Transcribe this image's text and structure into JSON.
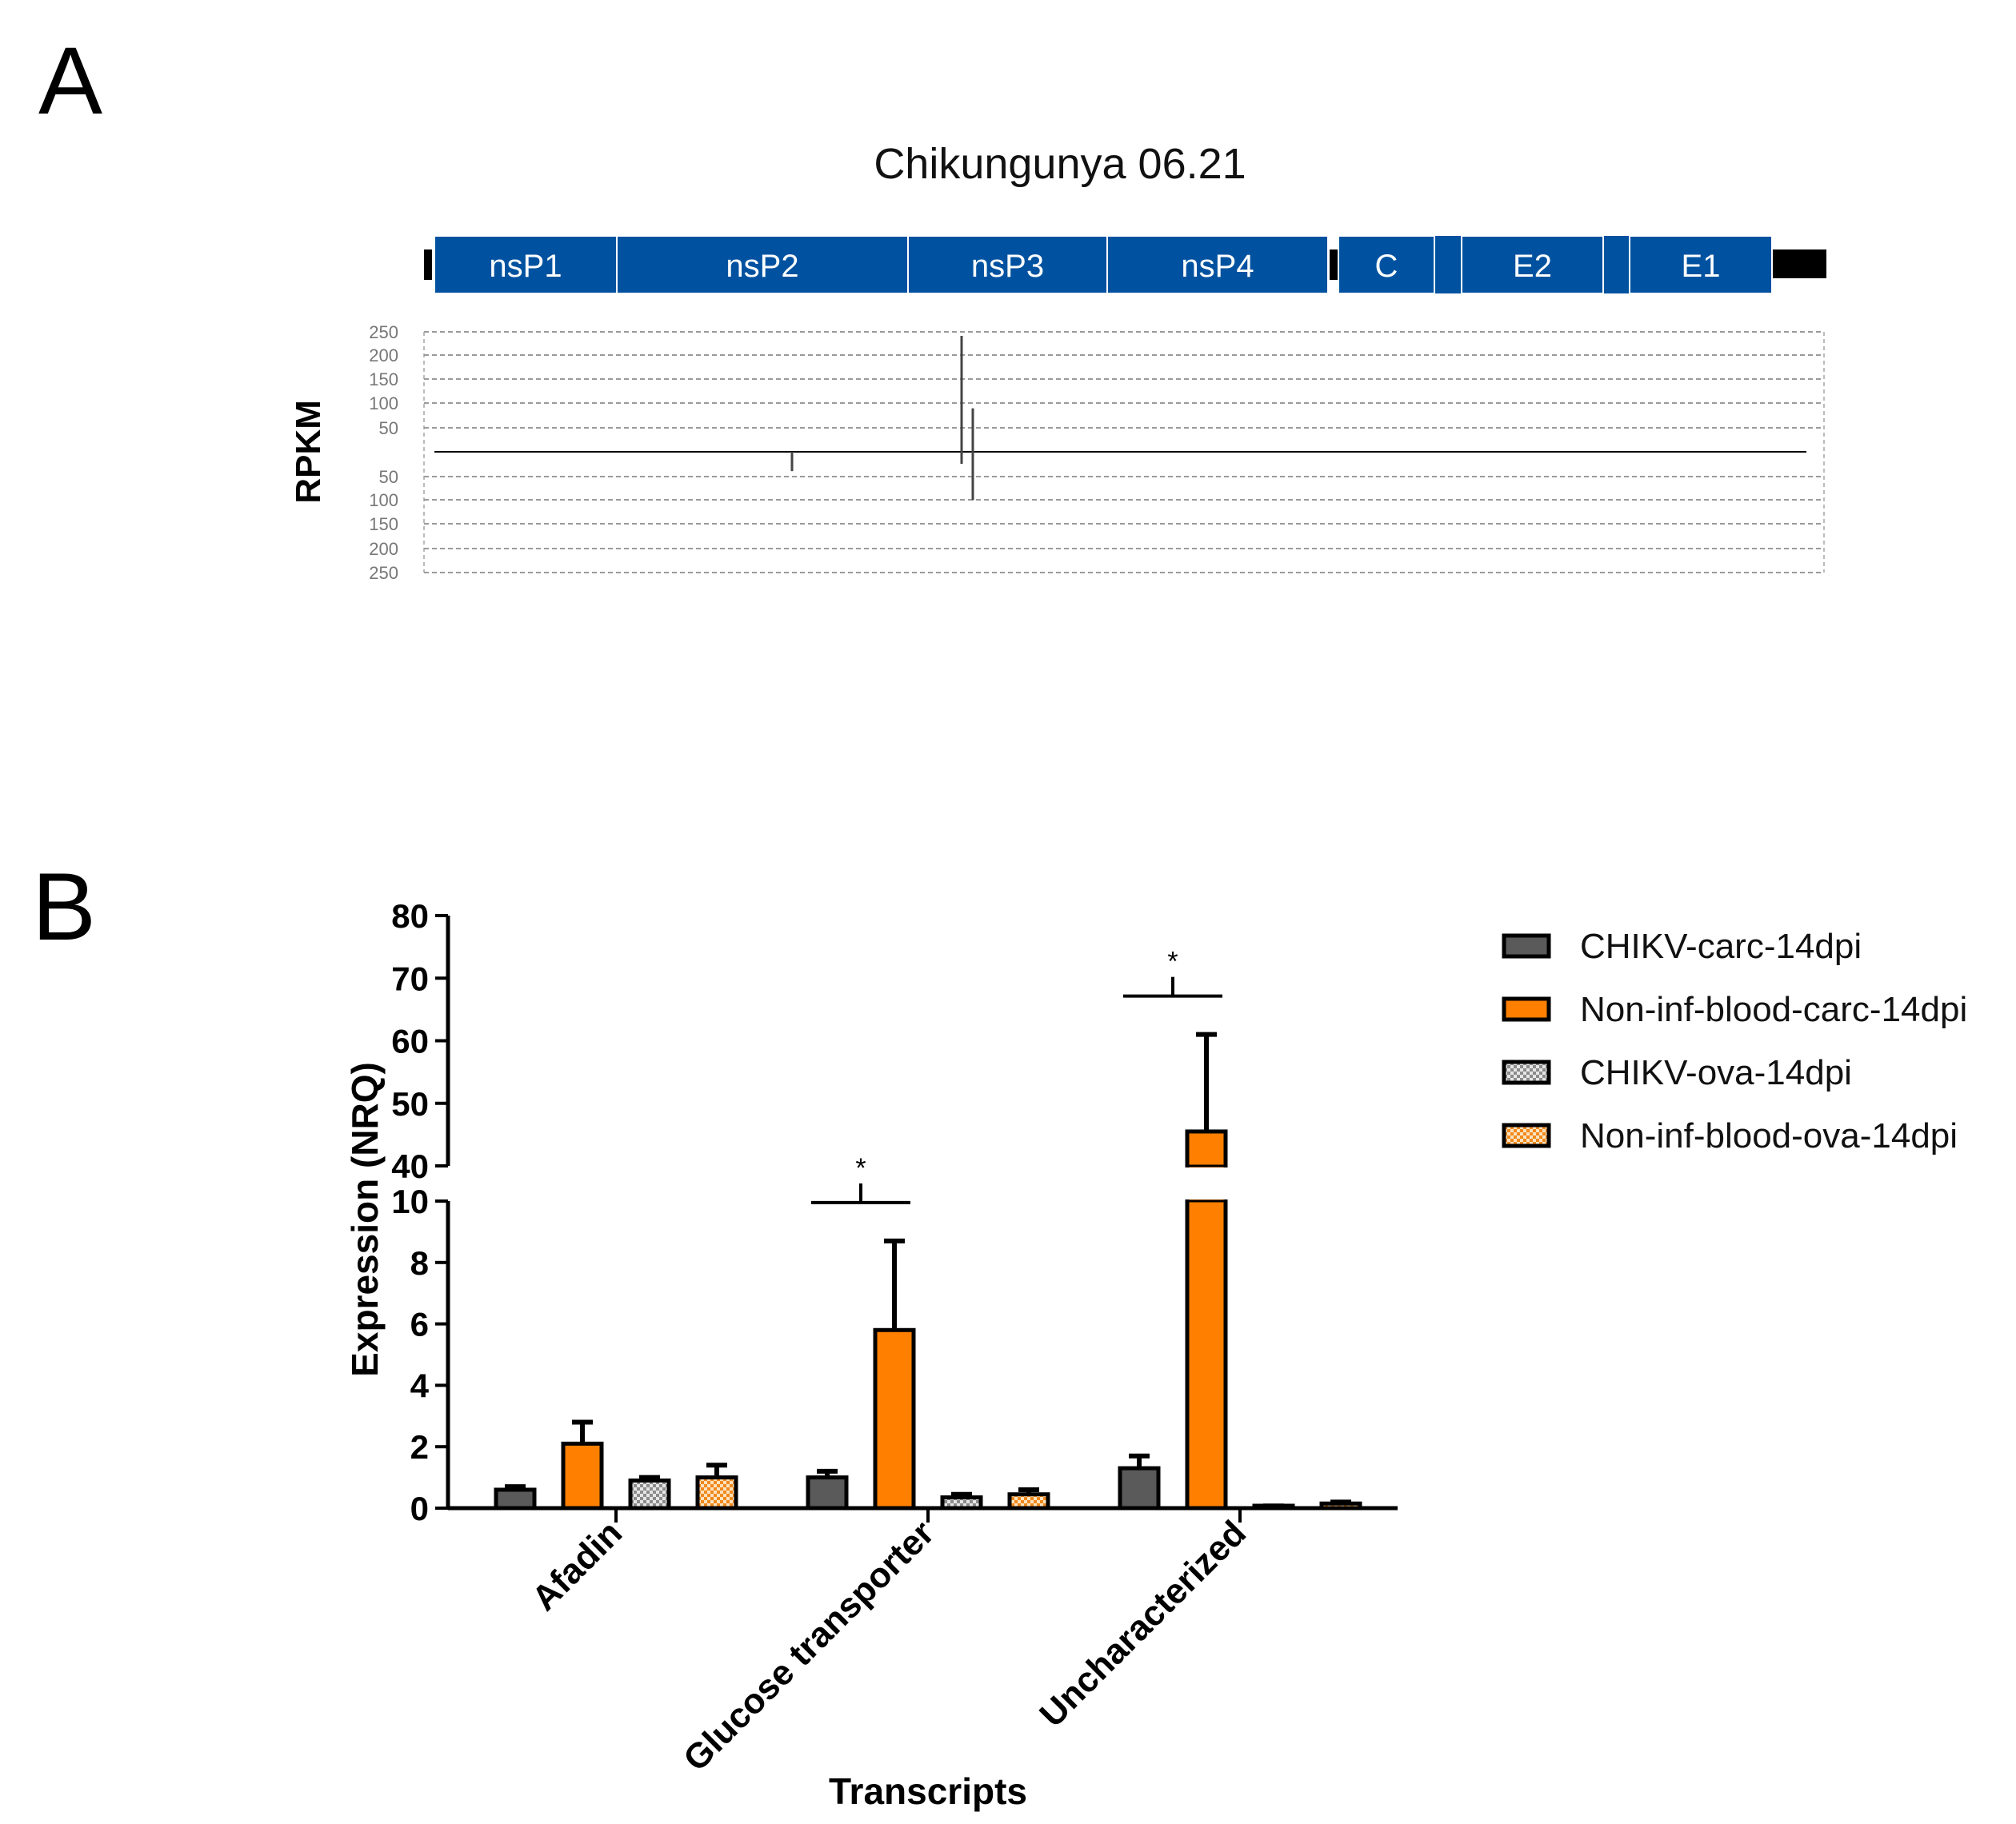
{
  "panel_a": {
    "letter": "A",
    "title": "Chikungunya 06.21",
    "ylabel": "RPKM",
    "genes": [
      "nsP1",
      "nsP2",
      "nsP3",
      "nsP4",
      "C",
      "E2",
      "E1"
    ],
    "ticks_top": [
      "250",
      "200",
      "150",
      "100",
      "50"
    ],
    "ticks_bottom": [
      "50",
      "100",
      "150",
      "200",
      "250"
    ]
  },
  "panel_b": {
    "letter": "B",
    "xlabel": "Transcripts",
    "ylabel": "Expression (NRQ)",
    "significance": "*"
  },
  "colors": {
    "gene_blue": "#0052a0",
    "dark_gray": "#5a5a5a",
    "orange": "#ff7f00",
    "pattern_gray": "#b5b5b5",
    "pattern_orange": "#f4a94e"
  },
  "chart_data": [
    {
      "type": "coverage",
      "title": "Chikungunya 06.21",
      "ylabel": "RPKM",
      "genome_segments": [
        "nsP1",
        "nsP2",
        "nsP3",
        "nsP4",
        "C",
        "E2",
        "E1"
      ],
      "ylim_positive": [
        0,
        250
      ],
      "ylim_negative": [
        0,
        250
      ],
      "peaks": [
        {
          "strand": "positive",
          "location": "nsP3",
          "value": 240
        },
        {
          "strand": "positive",
          "location": "nsP3",
          "value": 90
        },
        {
          "strand": "negative",
          "location": "nsP2",
          "value": 40
        },
        {
          "strand": "negative",
          "location": "nsP3",
          "value": 100
        },
        {
          "strand": "negative",
          "location": "nsP3",
          "value": 25
        }
      ]
    },
    {
      "type": "bar",
      "xlabel": "Transcripts",
      "ylabel": "Expression (NRQ)",
      "categories": [
        "Afadin",
        "Glucose transporter",
        "Uncharacterized"
      ],
      "y_break": [
        10,
        40
      ],
      "ylim": [
        0,
        80
      ],
      "yticks_lower": [
        "0",
        "2",
        "4",
        "6",
        "8",
        "10"
      ],
      "yticks_upper": [
        "40",
        "50",
        "60",
        "70",
        "80"
      ],
      "series": [
        {
          "name": "CHIKV-carc-14dpi",
          "values": [
            0.6,
            1.0,
            1.3
          ],
          "errors": [
            0.1,
            0.2,
            0.4
          ]
        },
        {
          "name": "Non-inf-blood-carc-14dpi",
          "values": [
            2.1,
            5.8,
            45.5
          ],
          "errors": [
            0.7,
            2.9,
            15.5
          ]
        },
        {
          "name": "CHIKV-ova-14dpi",
          "values": [
            0.9,
            0.35,
            0.05
          ],
          "errors": [
            0.1,
            0.1,
            0.02
          ]
        },
        {
          "name": "Non-inf-blood-ova-14dpi",
          "values": [
            1.0,
            0.45,
            0.15
          ],
          "errors": [
            0.4,
            0.15,
            0.05
          ]
        }
      ],
      "annotations": [
        {
          "category": "Glucose transporter",
          "text": "*"
        },
        {
          "category": "Uncharacterized",
          "text": "*"
        }
      ]
    }
  ]
}
